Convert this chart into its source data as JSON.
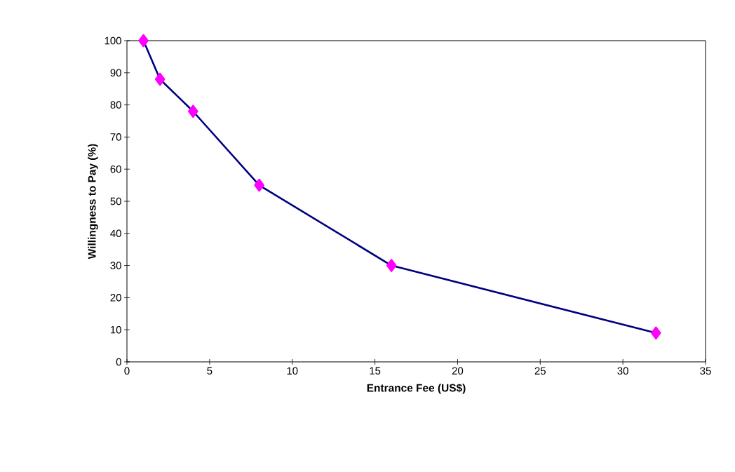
{
  "chart_data": {
    "type": "line",
    "xlabel": "Entrance Fee (US$)",
    "ylabel": "Willingness to Pay (%)",
    "x": [
      1,
      2,
      4,
      8,
      16,
      32
    ],
    "series": [
      {
        "color": "#000080",
        "values": [
          100,
          88,
          78,
          55,
          30,
          9
        ]
      }
    ],
    "marker": "diamond",
    "xlim": [
      0,
      35
    ],
    "xticks": [
      0,
      5,
      10,
      15,
      20,
      25,
      30,
      35
    ],
    "ylim": [
      0,
      100
    ],
    "yticks": [
      0,
      10,
      20,
      30,
      40,
      50,
      60,
      70,
      80,
      90,
      100
    ],
    "grid": false
  }
}
